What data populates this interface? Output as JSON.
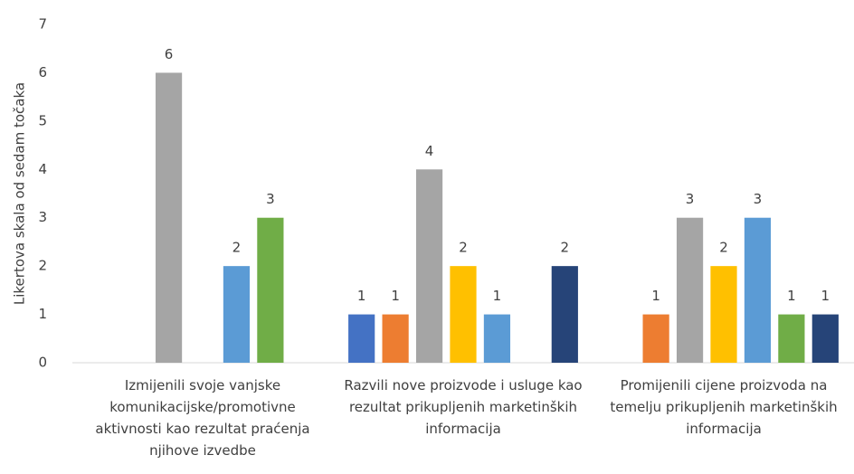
{
  "chart_data": {
    "type": "bar",
    "y_axis_label": "Likertova skala od sedam točaka",
    "categories": [
      "Izmijenili svoje vanjske komunikacijske/promotivne aktivnosti kao rezultat praćenja njihove izvedbe",
      "Razvili nove proizvode i usluge kao rezultat prikupljenih marketinških informacija",
      "Promijenili cijene proizvoda na temelju prikupljenih marketinških informacija"
    ],
    "series": [
      {
        "color": "#4472c4",
        "values": [
          null,
          1,
          null
        ]
      },
      {
        "color": "#ed7d31",
        "values": [
          null,
          1,
          1
        ]
      },
      {
        "color": "#a5a5a5",
        "values": [
          6,
          4,
          3
        ]
      },
      {
        "color": "#ffc000",
        "values": [
          null,
          2,
          2
        ]
      },
      {
        "color": "#5b9bd5",
        "values": [
          2,
          1,
          3
        ]
      },
      {
        "color": "#70ad47",
        "values": [
          3,
          null,
          1
        ]
      },
      {
        "color": "#264478",
        "values": [
          null,
          2,
          1
        ]
      }
    ],
    "ylim": [
      0,
      7
    ],
    "yticks": [
      0,
      1,
      2,
      3,
      4,
      5,
      6,
      7
    ],
    "grid": false
  }
}
